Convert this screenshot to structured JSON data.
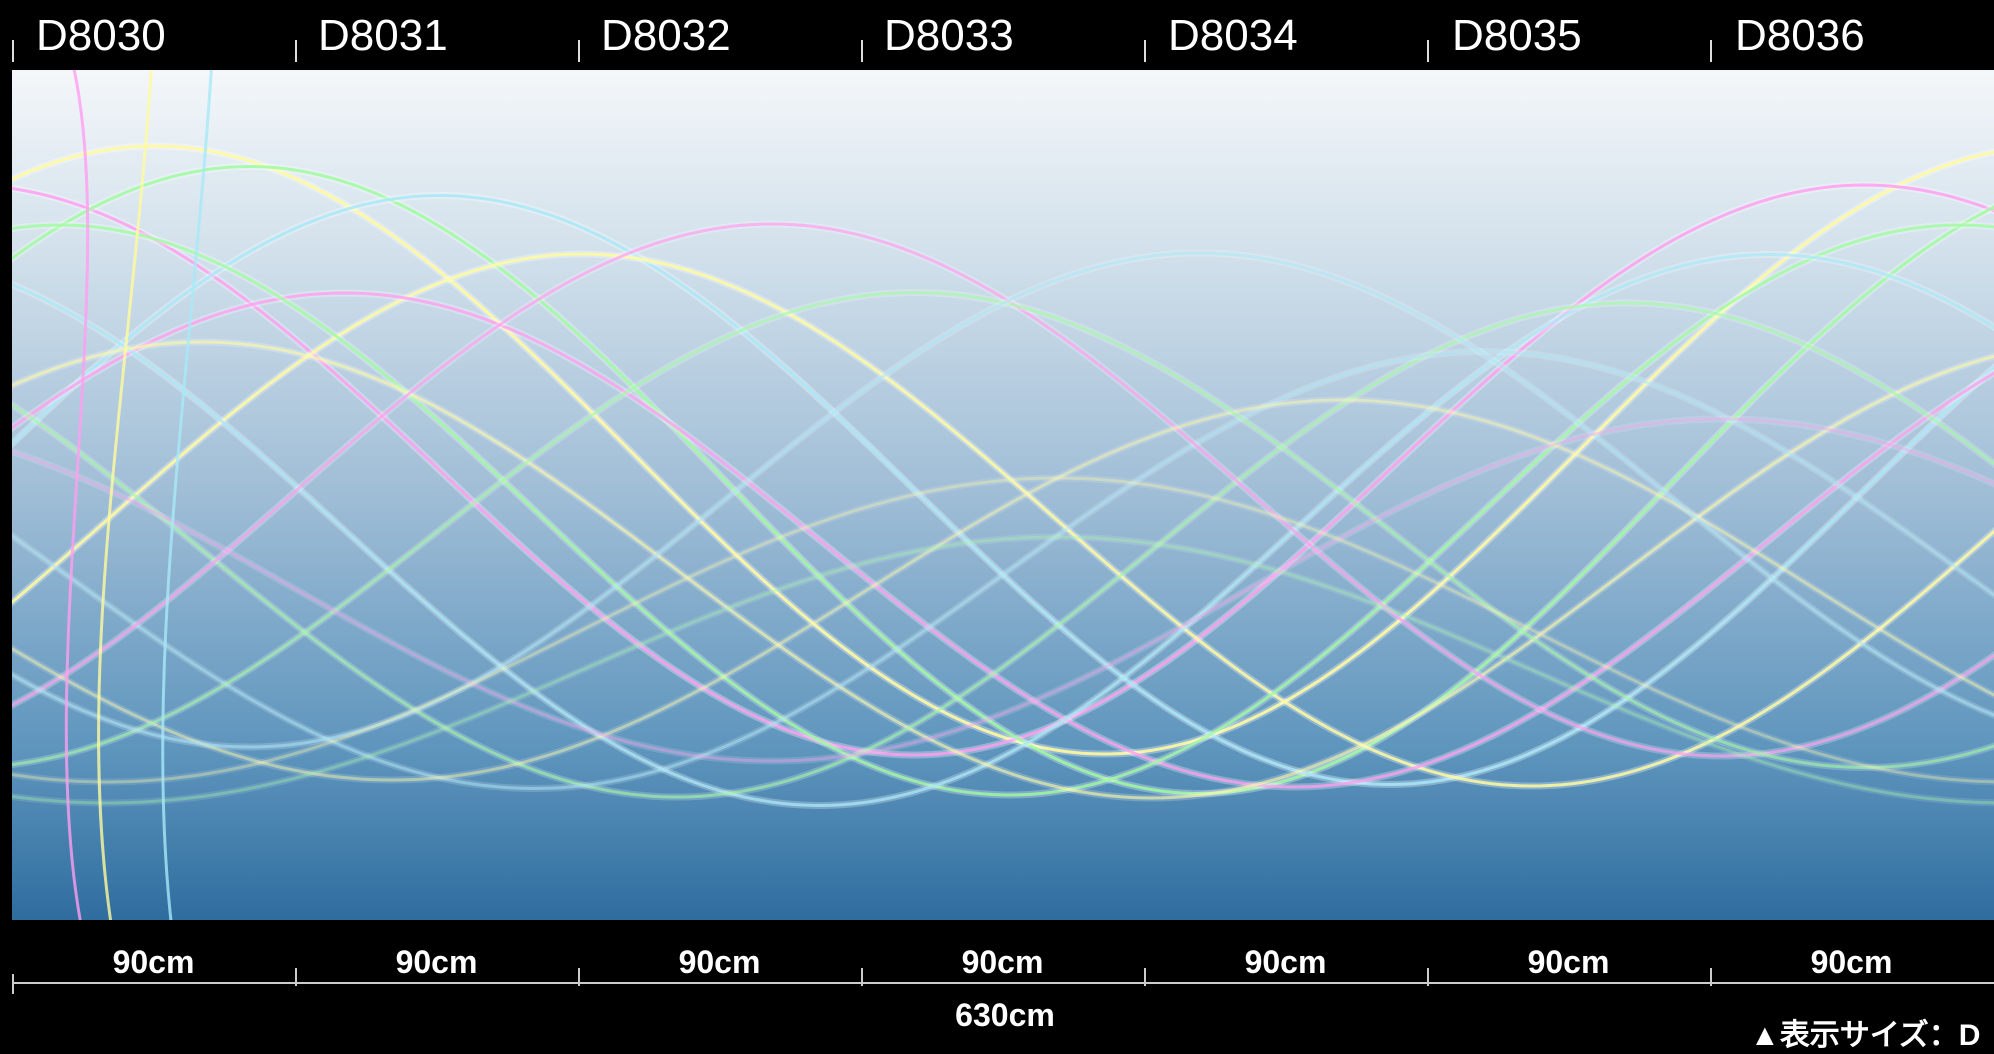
{
  "panels": [
    {
      "code": "D8030",
      "width": "90cm"
    },
    {
      "code": "D8031",
      "width": "90cm"
    },
    {
      "code": "D8032",
      "width": "90cm"
    },
    {
      "code": "D8033",
      "width": "90cm"
    },
    {
      "code": "D8034",
      "width": "90cm"
    },
    {
      "code": "D8035",
      "width": "90cm"
    },
    {
      "code": "D8036",
      "width": "90cm"
    }
  ],
  "total_width": "630cm",
  "footer_note": "▲表示サイズ：D",
  "colors": {
    "background_top": "#f4f7fa",
    "background_bottom": "#2f6d9f",
    "line_colors": [
      "#ff9ef0",
      "#fffa9e",
      "#9efc9e",
      "#a8e8f8"
    ]
  },
  "pattern": "pastel-wave-lines"
}
